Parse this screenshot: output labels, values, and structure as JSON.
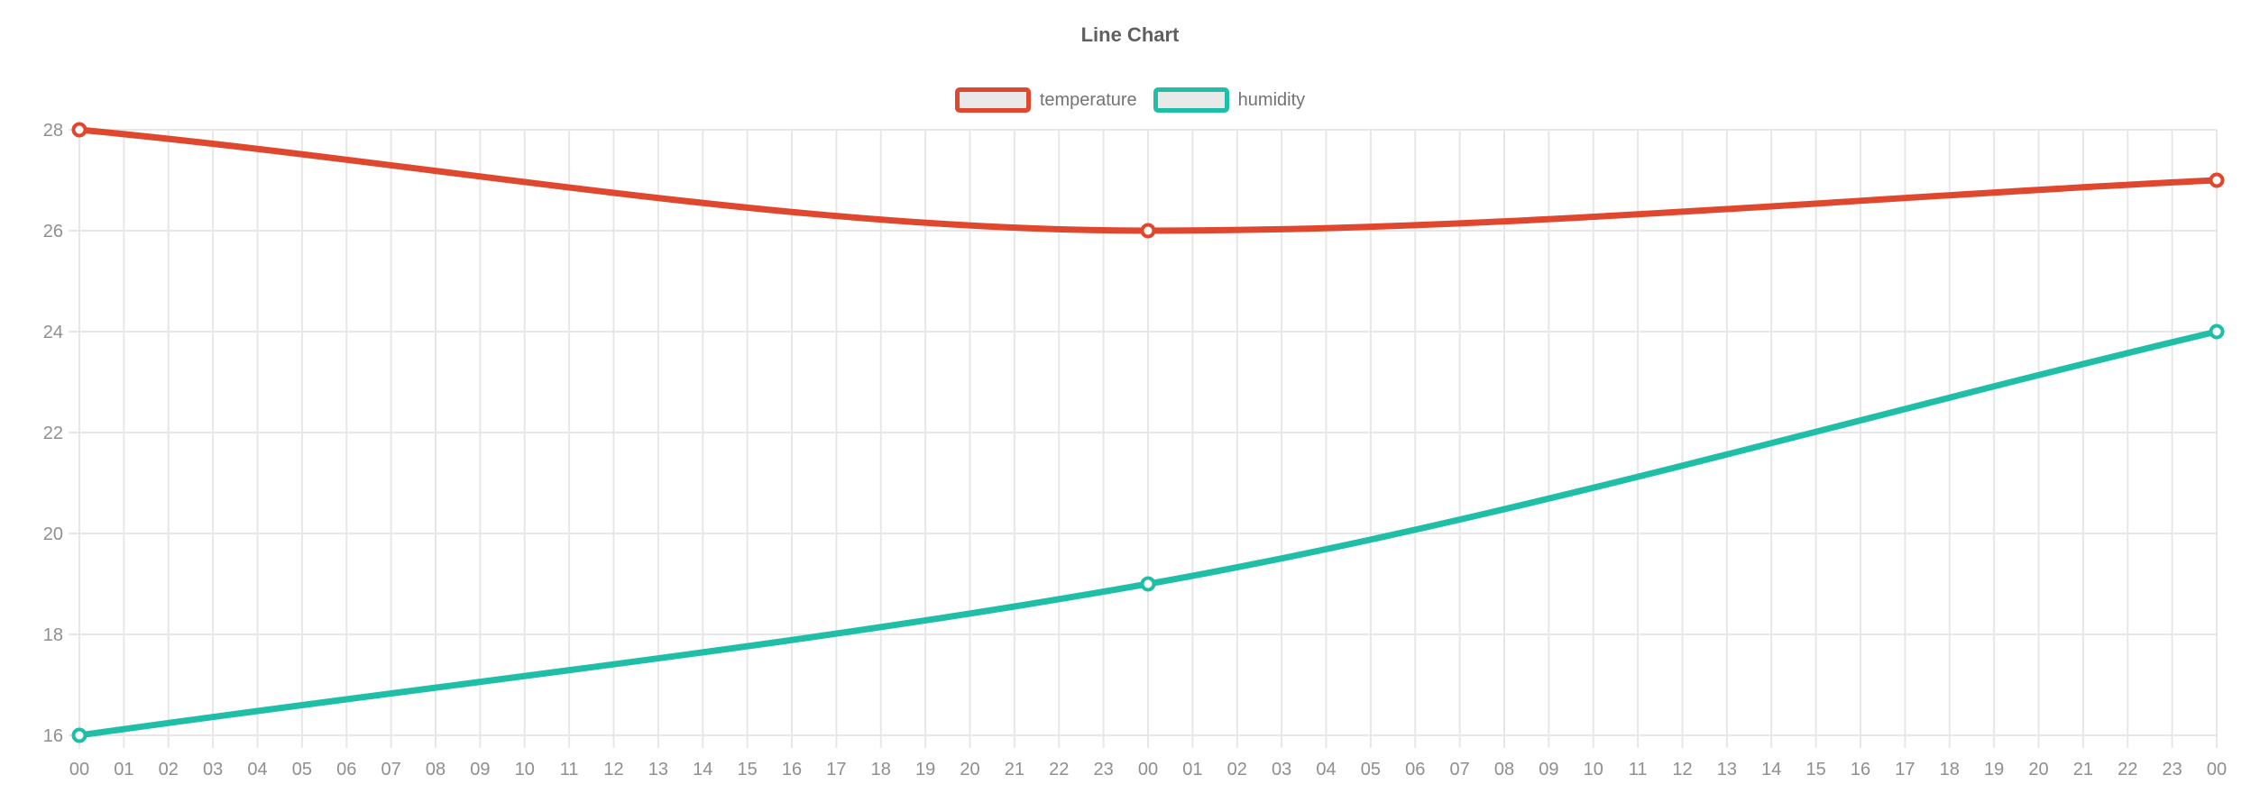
{
  "chart_data": {
    "type": "line",
    "title": "Line Chart",
    "xlabel": "",
    "ylabel": "",
    "ylim": [
      16,
      28
    ],
    "y_ticks": [
      16,
      18,
      20,
      22,
      24,
      26,
      28
    ],
    "grid": true,
    "legend_position": "top",
    "marker_style": "open-circle",
    "line_style": "smooth-monotone",
    "categories": [
      "00",
      "01",
      "02",
      "03",
      "04",
      "05",
      "06",
      "07",
      "08",
      "09",
      "10",
      "11",
      "12",
      "13",
      "14",
      "15",
      "16",
      "17",
      "18",
      "19",
      "20",
      "21",
      "22",
      "23",
      "00",
      "01",
      "02",
      "03",
      "04",
      "05",
      "06",
      "07",
      "08",
      "09",
      "10",
      "11",
      "12",
      "13",
      "14",
      "15",
      "16",
      "17",
      "18",
      "19",
      "20",
      "21",
      "22",
      "23",
      "00"
    ],
    "series": [
      {
        "name": "temperature",
        "color": "#e0472f",
        "points": [
          {
            "category_index": 0,
            "category": "00",
            "value": 28
          },
          {
            "category_index": 24,
            "category": "00",
            "value": 26
          },
          {
            "category_index": 48,
            "category": "00",
            "value": 27
          }
        ]
      },
      {
        "name": "humidity",
        "color": "#1ebfa6",
        "points": [
          {
            "category_index": 0,
            "category": "00",
            "value": 16
          },
          {
            "category_index": 24,
            "category": "00",
            "value": 19
          },
          {
            "category_index": 48,
            "category": "00",
            "value": 24
          }
        ]
      }
    ]
  },
  "style": {
    "background": "#ffffff",
    "grid_color": "#e7e7e7",
    "tick_label_color": "#8f8f8f",
    "title_color": "#5f5f5f",
    "legend_text_color": "#737373",
    "legend_swatch_fill": "#e9e9e9",
    "marker_fill": "#ffffff"
  }
}
